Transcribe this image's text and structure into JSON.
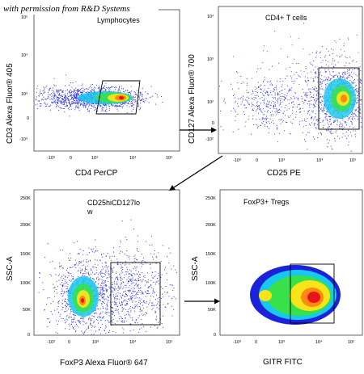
{
  "watermark": "with permission from R&D Systems",
  "colors": {
    "blue": "#1b22d8",
    "cyan": "#17c8f0",
    "green": "#38e14a",
    "yellow": "#f7e51a",
    "orange": "#ff8a12",
    "red": "#e8141a",
    "arrow": "#000000"
  },
  "chart_data": [
    {
      "type": "scatter",
      "title": "Lymphocytes",
      "xlabel": "CD4 PerCP",
      "ylabel": "CD3 Alexa Fluor® 405",
      "x_scale": "biexponential",
      "y_scale": "biexponential",
      "xticks": [
        "-10³",
        "0",
        "10³",
        "10⁴",
        "10⁵"
      ],
      "yticks": [
        "10⁵",
        "10⁴",
        "10³",
        "0",
        "-10³"
      ],
      "populations": [
        {
          "name": "",
          "x_center": "10³.6",
          "y_center": "10³",
          "density": "high"
        },
        {
          "name": "",
          "x_center": "10².5",
          "y_center": "10³",
          "density": "medium"
        }
      ],
      "gate": {
        "shape": "parallelogram",
        "x_range": [
          "10³",
          "10⁴"
        ],
        "y_range": [
          "10².7",
          "10³.2"
        ]
      }
    },
    {
      "type": "scatter",
      "title": "CD4+ T cells",
      "xlabel": "CD25 PE",
      "ylabel": "CD127 Alexa Fluor® 700",
      "x_scale": "biexponential",
      "y_scale": "biexponential",
      "xticks": [
        "-10³",
        "0",
        "10³",
        "10⁴",
        "10⁵"
      ],
      "yticks": [
        "10⁴",
        "10³",
        "10²",
        "0",
        "-10²"
      ],
      "populations": [
        {
          "name": "",
          "x_center": "10⁴.3",
          "y_center": "10².2",
          "density": "high"
        },
        {
          "name": "",
          "x_center": "0",
          "y_center": "10²",
          "density": "low"
        }
      ],
      "gate": {
        "shape": "rectangle",
        "x_range": [
          "10³.7",
          "10⁵"
        ],
        "y_range": [
          "0",
          "10³.3"
        ]
      }
    },
    {
      "type": "scatter",
      "title": "CD25hiCD127lo w",
      "xlabel": "FoxP3 Alexa Fluor® 647",
      "ylabel": "SSC-A",
      "x_scale": "biexponential",
      "y_scale": "linear",
      "xticks": [
        "-10³",
        "0",
        "10³",
        "10⁴",
        "10⁵"
      ],
      "yticks": [
        "250K",
        "200K",
        "150K",
        "100K",
        "50K",
        "0"
      ],
      "ylim": [
        0,
        260000
      ],
      "populations": [
        {
          "name": "",
          "x_center": "10²",
          "y_center": 70000,
          "density": "high"
        },
        {
          "name": "",
          "x_center": "10³.8",
          "y_center": 80000,
          "density": "medium"
        }
      ],
      "gate": {
        "shape": "rectangle",
        "x_range": [
          "10³.2",
          "10⁴.6"
        ],
        "y_range": [
          40000,
          135000
        ]
      }
    },
    {
      "type": "scatter",
      "title": "FoxP3+ Tregs",
      "xlabel": "GITR FITC",
      "ylabel": "SSC-A",
      "x_scale": "biexponential",
      "y_scale": "linear",
      "xticks": [
        "-10³",
        "0",
        "10³",
        "10⁴",
        "10⁵"
      ],
      "yticks": [
        "250K",
        "200K",
        "150K",
        "100K",
        "50K",
        "0"
      ],
      "ylim": [
        0,
        260000
      ],
      "populations": [
        {
          "name": "",
          "x_center": "10³.8",
          "y_center": 80000,
          "density": "high"
        }
      ],
      "gate": {
        "shape": "rectangle",
        "x_range": [
          "10³.4",
          "10⁴.6"
        ],
        "y_range": [
          30000,
          135000
        ]
      }
    }
  ]
}
